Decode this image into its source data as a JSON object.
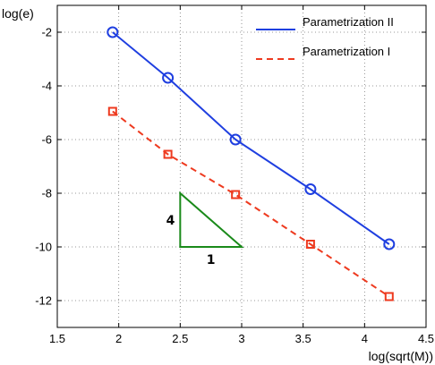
{
  "chart_data": {
    "type": "line",
    "xlabel": "log(sqrt(M))",
    "ylabel": "log(e)",
    "xlim": [
      1.5,
      4.5
    ],
    "ylim": [
      -13,
      -1
    ],
    "xticks": [
      "1.5",
      "2",
      "2.5",
      "3",
      "3.5",
      "4",
      "4.5"
    ],
    "yticks": [
      "-2",
      "-4",
      "-6",
      "-8",
      "-10",
      "-12"
    ],
    "grid": true,
    "legend_position": "top-right",
    "series": [
      {
        "name": "Parametrization II",
        "color": "#1f3fe0",
        "line_style": "solid",
        "marker": "circle",
        "x": [
          1.95,
          2.4,
          2.95,
          3.56,
          4.2
        ],
        "y": [
          -2.0,
          -3.7,
          -6.0,
          -7.85,
          -9.9
        ]
      },
      {
        "name": "Parametrization I",
        "color": "#ee3a1f",
        "line_style": "dashed",
        "marker": "square",
        "x": [
          1.95,
          2.4,
          2.95,
          3.56,
          4.2
        ],
        "y": [
          -4.95,
          -6.55,
          -8.05,
          -9.9,
          -11.85
        ]
      }
    ],
    "annotations": {
      "slope_triangle": {
        "color": "#1a8a1a",
        "vertices": [
          [
            2.5,
            -8
          ],
          [
            2.5,
            -10
          ],
          [
            3.0,
            -10
          ]
        ],
        "vertical_label": "4",
        "horizontal_label": "1"
      }
    }
  }
}
